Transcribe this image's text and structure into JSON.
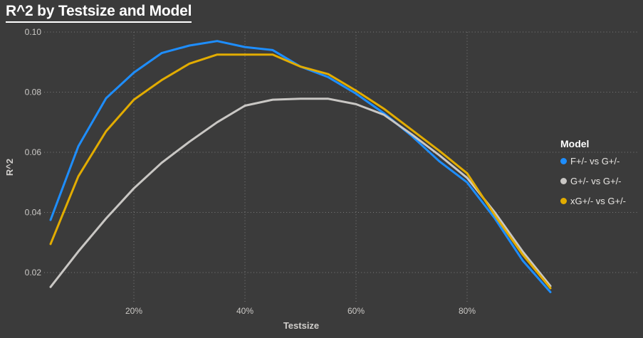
{
  "title": "R^2 by Testsize and Model",
  "colors": {
    "background": "#3B3B3B",
    "gridline": "#7B7B7B",
    "tick_text": "#CBC9C6",
    "title_text": "#FFFFFF"
  },
  "legend": {
    "title": "Model",
    "position": "right"
  },
  "chart_data": {
    "type": "line",
    "title": "R^2 by Testsize and Model",
    "xlabel": "Testsize",
    "ylabel": "R^2",
    "x": [
      5,
      10,
      15,
      20,
      25,
      30,
      35,
      40,
      45,
      50,
      55,
      60,
      65,
      70,
      75,
      80,
      85,
      90,
      95
    ],
    "x_unit": "percent",
    "x_tick_labels": [
      "20%",
      "40%",
      "60%",
      "80%"
    ],
    "x_tick_values": [
      20,
      40,
      60,
      80
    ],
    "y_tick_labels": [
      "0.10",
      "0.08",
      "0.06",
      "0.04",
      "0.02"
    ],
    "y_tick_values": [
      0.1,
      0.08,
      0.06,
      0.04,
      0.02
    ],
    "xlim": [
      4,
      96
    ],
    "ylim": [
      0.01,
      0.1
    ],
    "grid": "dotted",
    "legend_position": "right",
    "series": [
      {
        "name": "F+/- vs G+/-",
        "color": "#1E8EFF",
        "values": [
          0.0375,
          0.062,
          0.078,
          0.0865,
          0.093,
          0.0955,
          0.097,
          0.095,
          0.094,
          0.0885,
          0.085,
          0.0795,
          0.073,
          0.0655,
          0.057,
          0.05,
          0.038,
          0.024,
          0.0135
        ]
      },
      {
        "name": "G+/- vs G+/-",
        "color": "#C9C7C4",
        "values": [
          0.0152,
          0.027,
          0.038,
          0.048,
          0.0565,
          0.0635,
          0.07,
          0.0755,
          0.0775,
          0.0778,
          0.0778,
          0.076,
          0.0725,
          0.066,
          0.059,
          0.0515,
          0.04,
          0.027,
          0.0155
        ]
      },
      {
        "name": "xG+/- vs G+/-",
        "color": "#E2AC00",
        "values": [
          0.0295,
          0.052,
          0.067,
          0.0775,
          0.084,
          0.0895,
          0.0925,
          0.0925,
          0.0925,
          0.0885,
          0.086,
          0.0805,
          0.0745,
          0.0675,
          0.0605,
          0.053,
          0.039,
          0.026,
          0.0148
        ]
      }
    ]
  }
}
